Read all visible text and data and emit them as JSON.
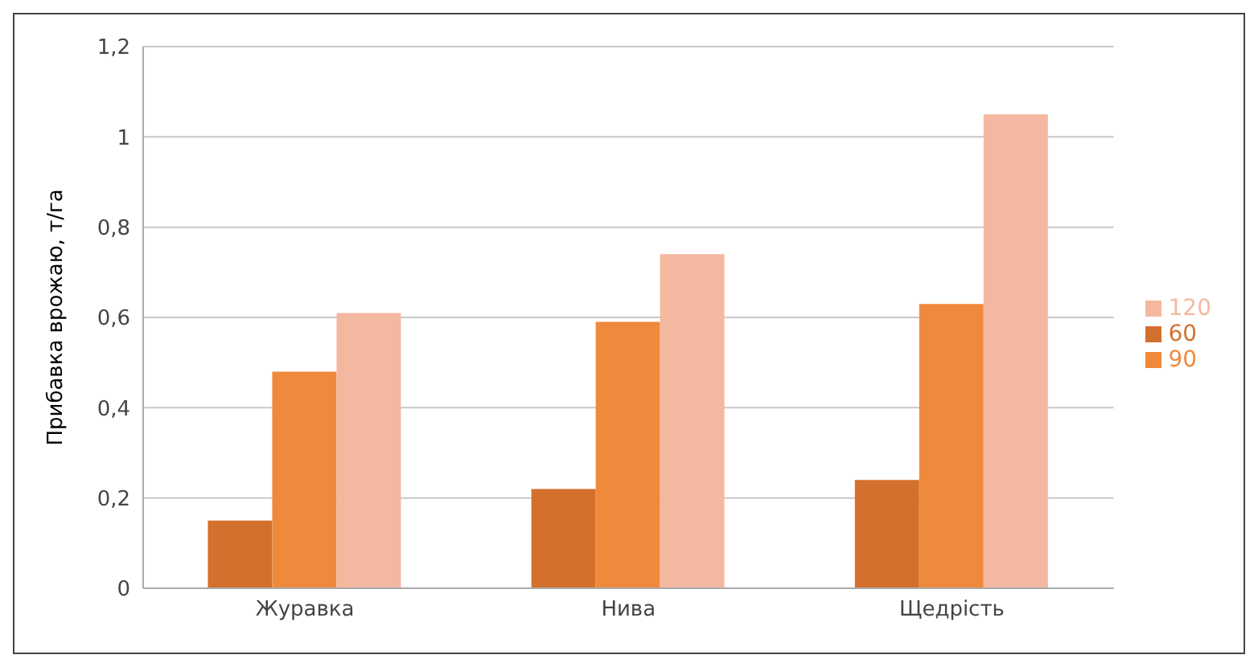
{
  "chart_data": {
    "type": "bar",
    "ylabel": "Прибавка врожаю, т/га",
    "categories": [
      "Журавка",
      "Нива",
      "Щедрість"
    ],
    "series": [
      {
        "name": "60",
        "color": "#d4702e",
        "values": [
          0.15,
          0.22,
          0.24
        ]
      },
      {
        "name": "90",
        "color": "#ef8a3c",
        "values": [
          0.48,
          0.59,
          0.63
        ]
      },
      {
        "name": "120",
        "color": "#f4b8a0",
        "values": [
          0.61,
          0.74,
          1.05
        ]
      }
    ],
    "ylim": [
      0,
      1.2
    ],
    "yticks": [
      0,
      {
        "value": 0.2,
        "label": "0,2"
      },
      {
        "value": 0.4,
        "label": "0,4"
      },
      {
        "value": 0.6,
        "label": "0,6"
      },
      {
        "value": 0.8,
        "label": "0,8"
      },
      1,
      {
        "value": 1.2,
        "label": "1,2"
      }
    ],
    "grid": "y",
    "legend": "right"
  }
}
